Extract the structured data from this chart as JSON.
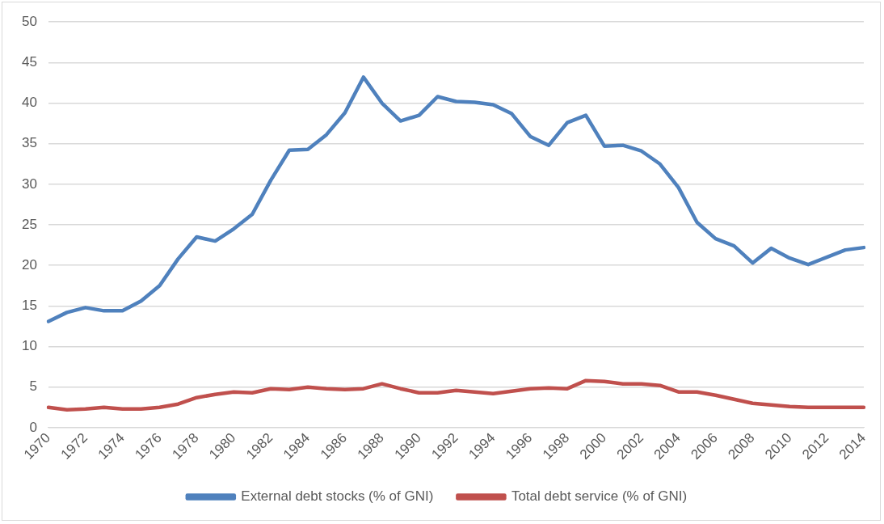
{
  "chart_data": {
    "type": "line",
    "categories": [
      "1970",
      null,
      "1972",
      null,
      "1974",
      null,
      "1976",
      null,
      "1978",
      null,
      "1980",
      null,
      "1982",
      null,
      "1984",
      null,
      "1986",
      null,
      "1988",
      null,
      "1990",
      null,
      "1992",
      null,
      "1994",
      null,
      "1996",
      null,
      "1998",
      null,
      "2000",
      null,
      "2002",
      null,
      "2004",
      null,
      "2006",
      null,
      "2008",
      null,
      "2010",
      null,
      "2012",
      null,
      "2014"
    ],
    "series": [
      {
        "name": "External debt stocks (% of GNI)",
        "color": "#4f81bd",
        "values": [
          13.1,
          14.2,
          14.8,
          14.4,
          14.4,
          15.6,
          17.5,
          20.8,
          23.5,
          23.0,
          24.5,
          26.3,
          30.5,
          34.2,
          34.3,
          36.1,
          38.8,
          43.2,
          40.0,
          37.8,
          38.5,
          40.8,
          40.2,
          40.1,
          39.8,
          38.7,
          35.9,
          34.8,
          37.6,
          38.5,
          34.7,
          34.8,
          34.1,
          32.5,
          29.6,
          25.3,
          23.3,
          22.4,
          20.3,
          22.1,
          20.9,
          20.1,
          21.0,
          21.9,
          22.2
        ]
      },
      {
        "name": "Total debt service (% of GNI)",
        "color": "#c0504d",
        "values": [
          2.5,
          2.2,
          2.3,
          2.5,
          2.3,
          2.3,
          2.5,
          2.9,
          3.7,
          4.1,
          4.4,
          4.3,
          4.8,
          4.7,
          5.0,
          4.8,
          4.7,
          4.8,
          5.4,
          4.8,
          4.3,
          4.3,
          4.6,
          4.4,
          4.2,
          4.5,
          4.8,
          4.9,
          4.8,
          5.8,
          5.7,
          5.4,
          5.4,
          5.2,
          4.4,
          4.4,
          4.0,
          3.5,
          3.0,
          2.8,
          2.6,
          2.5,
          2.5,
          2.5,
          2.5
        ]
      }
    ],
    "ylim": [
      0,
      50
    ],
    "yticks": [
      0,
      5,
      10,
      15,
      20,
      25,
      30,
      35,
      40,
      45,
      50
    ],
    "grid": "y",
    "legend": "bottom",
    "marker": "none",
    "line_style": "solid"
  }
}
